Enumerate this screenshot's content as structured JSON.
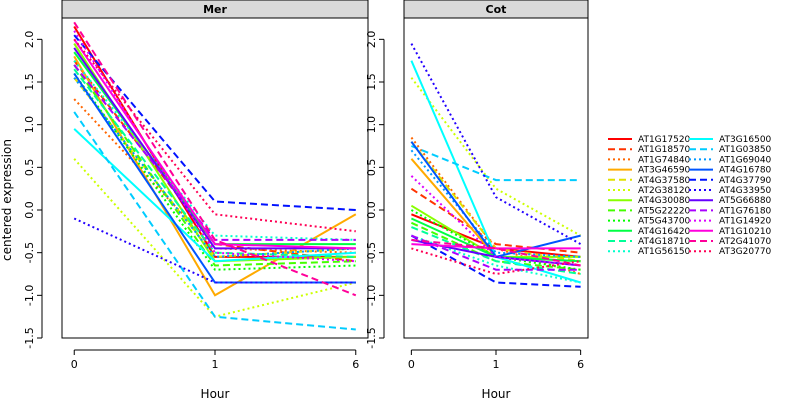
{
  "chart_data": {
    "type": "line",
    "ylabel": "centered expression",
    "xlabel": "Hour",
    "x": [
      "0",
      "1",
      "6"
    ],
    "ylim": [
      -1.5,
      2.25
    ],
    "yticks": [
      "-1.5",
      "-1.0",
      "-0.5",
      "0.0",
      "0.5",
      "1.0",
      "1.5",
      "2.0"
    ],
    "legend_position": "right",
    "series_styles": [
      {
        "name": "AT1G17520",
        "color": "#ff0000",
        "dash": "solid"
      },
      {
        "name": "AT1G18570",
        "color": "#ff3300",
        "dash": "dashed"
      },
      {
        "name": "AT1G74840",
        "color": "#ff6600",
        "dash": "dotted"
      },
      {
        "name": "AT3G46590",
        "color": "#ffaa00",
        "dash": "solid"
      },
      {
        "name": "AT4G37580",
        "color": "#e0e000",
        "dash": "dashed"
      },
      {
        "name": "AT2G38120",
        "color": "#ccff00",
        "dash": "dotted"
      },
      {
        "name": "AT4G30080",
        "color": "#88ff00",
        "dash": "solid"
      },
      {
        "name": "AT5G22220",
        "color": "#44ff00",
        "dash": "dashed"
      },
      {
        "name": "AT5G43700",
        "color": "#00ff00",
        "dash": "dotted"
      },
      {
        "name": "AT4G16420",
        "color": "#00ff44",
        "dash": "solid"
      },
      {
        "name": "AT4G18710",
        "color": "#00ff99",
        "dash": "dashed"
      },
      {
        "name": "AT1G56150",
        "color": "#00ffcc",
        "dash": "dotted"
      },
      {
        "name": "AT3G16500",
        "color": "#00ffff",
        "dash": "solid"
      },
      {
        "name": "AT1G03850",
        "color": "#00ccff",
        "dash": "dashed"
      },
      {
        "name": "AT1G69040",
        "color": "#0099ff",
        "dash": "dotted"
      },
      {
        "name": "AT4G16780",
        "color": "#0055ff",
        "dash": "solid"
      },
      {
        "name": "AT4G37790",
        "color": "#0011ff",
        "dash": "dashed"
      },
      {
        "name": "AT4G33950",
        "color": "#2200ff",
        "dash": "dotted"
      },
      {
        "name": "AT5G66880",
        "color": "#6600ff",
        "dash": "solid"
      },
      {
        "name": "AT1G76180",
        "color": "#aa00ff",
        "dash": "dashed"
      },
      {
        "name": "AT1G14920",
        "color": "#dd00ff",
        "dash": "dotted"
      },
      {
        "name": "AT1G10210",
        "color": "#ff00dd",
        "dash": "solid"
      },
      {
        "name": "AT2G41070",
        "color": "#ff0099",
        "dash": "dashed"
      },
      {
        "name": "AT3G20770",
        "color": "#ff0055",
        "dash": "dotted"
      }
    ],
    "panels": [
      {
        "title": "Mer",
        "series": [
          {
            "name": "AT1G17520",
            "values": [
              2.15,
              -0.55,
              -0.55
            ]
          },
          {
            "name": "AT1G18570",
            "values": [
              1.75,
              -0.4,
              -0.6
            ]
          },
          {
            "name": "AT1G74840",
            "values": [
              1.3,
              -0.45,
              -0.5
            ]
          },
          {
            "name": "AT3G46590",
            "values": [
              1.8,
              -1.0,
              -0.05
            ]
          },
          {
            "name": "AT4G37580",
            "values": [
              1.55,
              -0.55,
              -0.45
            ]
          },
          {
            "name": "AT2G38120",
            "values": [
              0.6,
              -1.25,
              -0.85
            ]
          },
          {
            "name": "AT4G30080",
            "values": [
              1.95,
              -0.6,
              -0.55
            ]
          },
          {
            "name": "AT5G22220",
            "values": [
              1.7,
              -0.65,
              -0.6
            ]
          },
          {
            "name": "AT5G43700",
            "values": [
              1.6,
              -0.7,
              -0.65
            ]
          },
          {
            "name": "AT4G16420",
            "values": [
              1.85,
              -0.4,
              -0.4
            ]
          },
          {
            "name": "AT4G18710",
            "values": [
              1.65,
              -0.5,
              -0.55
            ]
          },
          {
            "name": "AT1G56150",
            "values": [
              1.75,
              -0.3,
              -0.35
            ]
          },
          {
            "name": "AT3G16500",
            "values": [
              0.95,
              -0.6,
              -0.5
            ]
          },
          {
            "name": "AT1G03850",
            "values": [
              1.15,
              -1.25,
              -1.4
            ]
          },
          {
            "name": "AT1G69040",
            "values": [
              1.55,
              -0.55,
              -0.45
            ]
          },
          {
            "name": "AT4G16780",
            "values": [
              1.6,
              -0.85,
              -0.85
            ]
          },
          {
            "name": "AT4G37790",
            "values": [
              2.05,
              0.1,
              0.0
            ]
          },
          {
            "name": "AT4G33950",
            "values": [
              -0.1,
              -0.85,
              -0.85
            ]
          },
          {
            "name": "AT5G66880",
            "values": [
              1.9,
              -0.45,
              -0.45
            ]
          },
          {
            "name": "AT1G76180",
            "values": [
              1.7,
              -0.35,
              -0.35
            ]
          },
          {
            "name": "AT1G14920",
            "values": [
              2.1,
              -0.5,
              -0.6
            ]
          },
          {
            "name": "AT1G10210",
            "values": [
              2.0,
              -0.4,
              -0.45
            ]
          },
          {
            "name": "AT2G41070",
            "values": [
              2.2,
              -0.35,
              -1.0
            ]
          },
          {
            "name": "AT3G20770",
            "values": [
              2.0,
              -0.05,
              -0.25
            ]
          }
        ]
      },
      {
        "title": "Cot",
        "series": [
          {
            "name": "AT1G17520",
            "values": [
              -0.05,
              -0.45,
              -0.55
            ]
          },
          {
            "name": "AT1G18570",
            "values": [
              0.25,
              -0.4,
              -0.5
            ]
          },
          {
            "name": "AT1G74840",
            "values": [
              0.85,
              -0.45,
              -0.75
            ]
          },
          {
            "name": "AT3G46590",
            "values": [
              0.6,
              -0.55,
              -0.6
            ]
          },
          {
            "name": "AT4G37580",
            "values": [
              0.8,
              -0.45,
              -0.6
            ]
          },
          {
            "name": "AT2G38120",
            "values": [
              1.55,
              0.25,
              -0.3
            ]
          },
          {
            "name": "AT4G30080",
            "values": [
              0.05,
              -0.55,
              -0.55
            ]
          },
          {
            "name": "AT5G22220",
            "values": [
              -0.15,
              -0.6,
              -0.7
            ]
          },
          {
            "name": "AT5G43700",
            "values": [
              0.0,
              -0.55,
              -0.7
            ]
          },
          {
            "name": "AT4G16420",
            "values": [
              -0.1,
              -0.55,
              -0.6
            ]
          },
          {
            "name": "AT4G18710",
            "values": [
              -0.2,
              -0.6,
              -0.75
            ]
          },
          {
            "name": "AT1G56150",
            "values": [
              -0.3,
              -0.65,
              -0.85
            ]
          },
          {
            "name": "AT3G16500",
            "values": [
              1.75,
              -0.55,
              -0.85
            ]
          },
          {
            "name": "AT1G03850",
            "values": [
              0.75,
              0.35,
              0.35
            ]
          },
          {
            "name": "AT1G69040",
            "values": [
              0.7,
              -0.5,
              -0.55
            ]
          },
          {
            "name": "AT4G16780",
            "values": [
              0.8,
              -0.55,
              -0.3
            ]
          },
          {
            "name": "AT4G37790",
            "values": [
              -0.3,
              -0.85,
              -0.9
            ]
          },
          {
            "name": "AT4G33950",
            "values": [
              1.95,
              0.15,
              -0.4
            ]
          },
          {
            "name": "AT5G66880",
            "values": [
              -0.35,
              -0.55,
              -0.65
            ]
          },
          {
            "name": "AT1G76180",
            "values": [
              -0.3,
              -0.7,
              -0.7
            ]
          },
          {
            "name": "AT1G14920",
            "values": [
              0.4,
              -0.55,
              -0.65
            ]
          },
          {
            "name": "AT1G10210",
            "values": [
              -0.4,
              -0.45,
              -0.45
            ]
          },
          {
            "name": "AT2G41070",
            "values": [
              -0.35,
              -0.45,
              -0.65
            ]
          },
          {
            "name": "AT3G20770",
            "values": [
              -0.45,
              -0.75,
              -0.6
            ]
          }
        ]
      }
    ]
  }
}
